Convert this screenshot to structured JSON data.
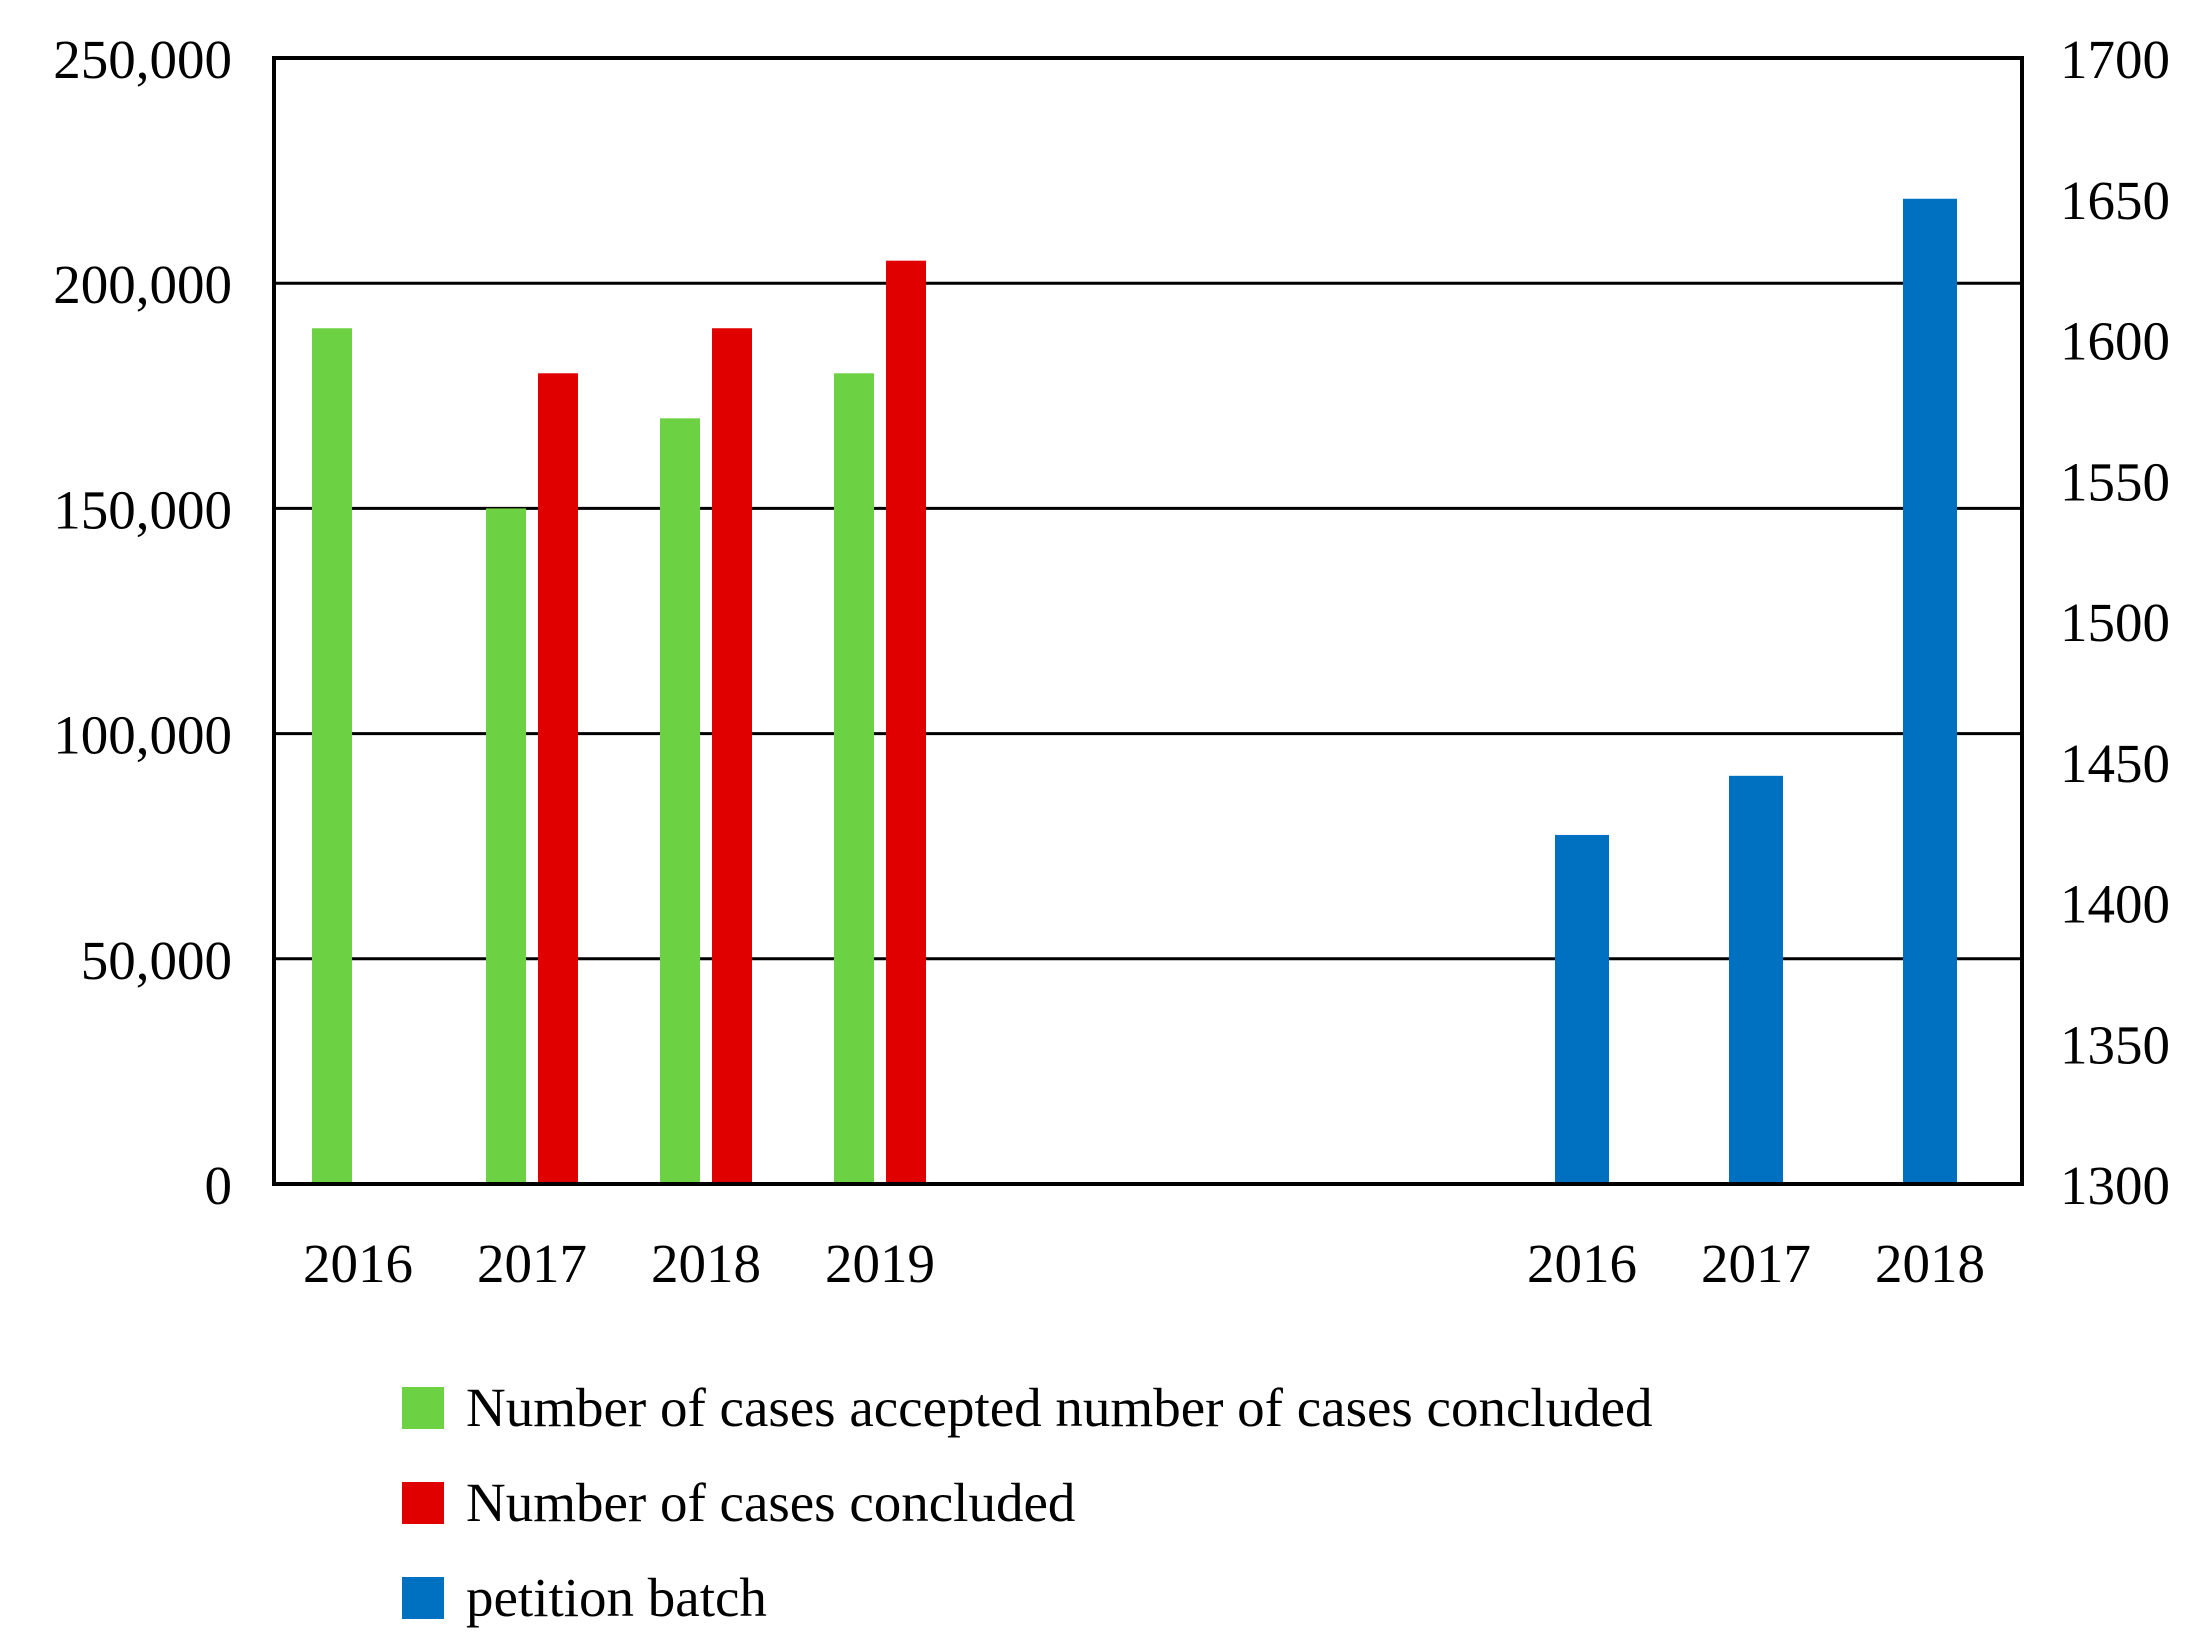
{
  "chart_data": {
    "type": "bar",
    "colors": {
      "accepted": "#6dd144",
      "concluded": "#e00000",
      "petition": "#0070c0",
      "axis": "#000000",
      "grid": "#000000"
    },
    "left_axis": {
      "ylim": [
        0,
        250000
      ],
      "ticks": [
        0,
        50000,
        100000,
        150000,
        200000,
        250000
      ],
      "tick_labels": [
        "0",
        "50,000",
        "100,000",
        "150,000",
        "200,000",
        "250,000"
      ]
    },
    "right_axis": {
      "ylim": [
        1300,
        1700
      ],
      "ticks": [
        1300,
        1350,
        1400,
        1450,
        1500,
        1550,
        1600,
        1650,
        1700
      ],
      "tick_labels": [
        "1300",
        "1350",
        "1400",
        "1450",
        "1500",
        "1550",
        "1600",
        "1650",
        "1700"
      ]
    },
    "groups": [
      {
        "axis": "left",
        "categories": [
          "2016",
          "2017",
          "2018",
          "2019"
        ],
        "series": [
          {
            "key": "accepted",
            "name": "Number of cases accepted number of cases concluded",
            "values": [
              190000,
              150000,
              170000,
              180000
            ]
          },
          {
            "key": "concluded",
            "name": "Number of cases concluded",
            "values": [
              null,
              180000,
              190000,
              205000
            ]
          }
        ]
      },
      {
        "axis": "right",
        "categories": [
          "2016",
          "2017",
          "2018"
        ],
        "series": [
          {
            "key": "petition",
            "name": "petition batch",
            "values": [
              1424,
              1445,
              1650
            ]
          }
        ]
      }
    ],
    "legend": [
      {
        "key": "accepted",
        "label": "Number of cases accepted number of cases concluded"
      },
      {
        "key": "concluded",
        "label": "Number of cases concluded"
      },
      {
        "key": "petition",
        "label": "petition batch"
      }
    ]
  }
}
